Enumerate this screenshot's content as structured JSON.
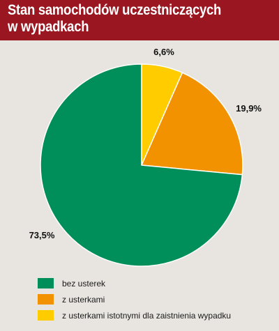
{
  "header": {
    "title_line1": "Stan samochodów uczestniczących",
    "title_line2": "w wypadkach"
  },
  "colors": {
    "header_bg": "#9a1620",
    "background": "#e8e5e1"
  },
  "chart_data": {
    "type": "pie",
    "title": "Stan samochodów uczestniczących w wypadkach",
    "start_angle": "12 o'clock",
    "direction": "clockwise",
    "legend_position": "bottom-left",
    "slices": [
      {
        "label": "z usterkami istotnymi dla zaistnienia wypadku",
        "value": 6.6,
        "value_label": "6,6%",
        "color": "#ffcc00"
      },
      {
        "label": "z usterkami",
        "value": 19.9,
        "value_label": "19,9%",
        "color": "#f39200"
      },
      {
        "label": "bez usterek",
        "value": 73.5,
        "value_label": "73,5%",
        "color": "#008f5a"
      }
    ]
  },
  "legend": {
    "items": [
      {
        "label": "bez usterek",
        "color": "#008f5a"
      },
      {
        "label": "z usterkami",
        "color": "#f39200"
      },
      {
        "label": "z usterkami istotnymi dla zaistnienia wypadku",
        "color": "#ffcc00"
      }
    ]
  }
}
